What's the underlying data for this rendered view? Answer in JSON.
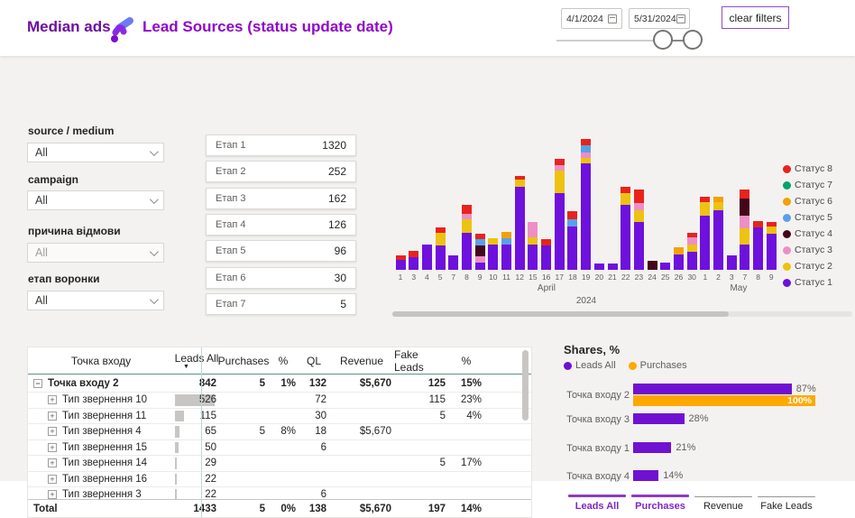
{
  "header": {
    "brand": "Median ads",
    "title": "Lead Sources (status update date)",
    "date_from": "4/1/2024",
    "date_to": "5/31/2024",
    "clear_filters_label": "clear filters"
  },
  "filters": [
    {
      "label": "source / medium",
      "value": "All",
      "muted": false
    },
    {
      "label": "campaign",
      "value": "All",
      "muted": false
    },
    {
      "label": "причина відмови",
      "value": "All",
      "muted": true
    },
    {
      "label": "етап воронки",
      "value": "All",
      "muted": false
    }
  ],
  "funnel_stages": [
    {
      "label": "Етап 1",
      "value": "1320"
    },
    {
      "label": "Етап 2",
      "value": "252"
    },
    {
      "label": "Етап 3",
      "value": "162"
    },
    {
      "label": "Етап 4",
      "value": "126"
    },
    {
      "label": "Етап 5",
      "value": "96"
    },
    {
      "label": "Етап 6",
      "value": "30"
    },
    {
      "label": "Етап 7",
      "value": "5"
    }
  ],
  "chart_data": {
    "type": "bar",
    "subtype": "stacked",
    "title": "",
    "xlabel": "date (April / May 2024)",
    "ylabel": "",
    "y_axis_visible": false,
    "ylim": [
      0,
      152
    ],
    "x_categories": [
      "1",
      "3",
      "4",
      "5",
      "7",
      "8",
      "9",
      "10",
      "11",
      "12",
      "15",
      "16",
      "17",
      "18",
      "19",
      "20",
      "21",
      "22",
      "23",
      "24",
      "25",
      "26",
      "30",
      "1",
      "2",
      "3",
      "7",
      "8",
      "9"
    ],
    "month_groups": [
      {
        "label": "April",
        "from": 0,
        "span": 23
      },
      {
        "label": "May",
        "from": 23,
        "span": 6
      }
    ],
    "year_label": "2024",
    "legend_position": "right",
    "legend_order": [
      "Статус 8",
      "Статус 7",
      "Статус 6",
      "Статус 5",
      "Статус 4",
      "Статус 3",
      "Статус 2",
      "Статус 1"
    ],
    "series": [
      {
        "name": "Статус 1",
        "color": "#6e11dc",
        "values": [
          11,
          14,
          28,
          27,
          16,
          41,
          8,
          28,
          28,
          92,
          28,
          27,
          85,
          48,
          118,
          7,
          7,
          72,
          53,
          0,
          8,
          17,
          20,
          60,
          66,
          16,
          28,
          47,
          40
        ]
      },
      {
        "name": "Статус 2",
        "color": "#edc211",
        "values": [
          0,
          0,
          0,
          14,
          0,
          15,
          0,
          7,
          0,
          8,
          8,
          0,
          25,
          0,
          6,
          0,
          0,
          13,
          13,
          0,
          0,
          0,
          8,
          15,
          9,
          0,
          18,
          0,
          8
        ]
      },
      {
        "name": "Статус 3",
        "color": "#ee8ec6",
        "values": [
          0,
          0,
          0,
          0,
          0,
          6,
          7,
          0,
          0,
          0,
          17,
          0,
          6,
          0,
          6,
          0,
          0,
          0,
          8,
          0,
          0,
          0,
          8,
          0,
          0,
          0,
          14,
          0,
          0
        ]
      },
      {
        "name": "Статус 4",
        "color": "#45061c",
        "values": [
          0,
          0,
          0,
          0,
          0,
          0,
          12,
          0,
          0,
          0,
          0,
          0,
          0,
          0,
          0,
          0,
          0,
          0,
          0,
          10,
          0,
          0,
          0,
          0,
          0,
          0,
          19,
          0,
          0
        ]
      },
      {
        "name": "Статус 5",
        "color": "#5aa0e8",
        "values": [
          0,
          0,
          0,
          0,
          0,
          0,
          7,
          0,
          7,
          0,
          0,
          0,
          0,
          8,
          8,
          0,
          0,
          0,
          0,
          0,
          0,
          0,
          0,
          0,
          0,
          0,
          0,
          0,
          0
        ]
      },
      {
        "name": "Статус 6",
        "color": "#f2a104",
        "values": [
          0,
          0,
          0,
          0,
          0,
          0,
          0,
          0,
          7,
          0,
          0,
          0,
          0,
          0,
          0,
          0,
          0,
          0,
          0,
          0,
          0,
          8,
          0,
          0,
          6,
          0,
          0,
          0,
          0
        ]
      },
      {
        "name": "Статус 7",
        "color": "#00a36c",
        "values": [
          0,
          0,
          0,
          0,
          0,
          0,
          0,
          0,
          0,
          0,
          0,
          0,
          0,
          0,
          0,
          0,
          0,
          0,
          0,
          0,
          0,
          0,
          0,
          0,
          0,
          0,
          0,
          0,
          0
        ]
      },
      {
        "name": "Статус 8",
        "color": "#e8231e",
        "values": [
          5,
          7,
          0,
          6,
          0,
          10,
          6,
          0,
          0,
          4,
          0,
          7,
          7,
          9,
          7,
          0,
          0,
          7,
          15,
          0,
          0,
          0,
          5,
          6,
          0,
          0,
          10,
          7,
          5
        ]
      }
    ]
  },
  "table": {
    "columns": [
      "Точка входу",
      "Leads All",
      "Purchases",
      "%",
      "QL",
      "Revenue",
      "Fake Leads",
      "%"
    ],
    "sorted_by": "Leads All",
    "rows": [
      {
        "level": 0,
        "expand": "minus",
        "bold": true,
        "name": "Точка входу 2",
        "leads": "842",
        "purchases": "5",
        "pct": "1%",
        "ql": "132",
        "revenue": "$5,670",
        "fake": "125",
        "fpct": "15%",
        "bar": 0
      },
      {
        "level": 1,
        "expand": "plus",
        "name": "Тип звернення 10",
        "leads": "526",
        "ql": "72",
        "fake": "115",
        "fpct": "23%",
        "bar": 1
      },
      {
        "level": 1,
        "expand": "plus",
        "name": "Тип звернення 11",
        "leads": "115",
        "ql": "30",
        "fake": "5",
        "fpct": "4%",
        "bar": 0.22
      },
      {
        "level": 1,
        "expand": "plus",
        "name": "Тип звернення 4",
        "leads": "65",
        "purchases": "5",
        "pct": "8%",
        "ql": "18",
        "revenue": "$5,670",
        "bar": 0.12
      },
      {
        "level": 1,
        "expand": "plus",
        "name": "Тип звернення 15",
        "leads": "50",
        "ql": "6",
        "bar": 0.1
      },
      {
        "level": 1,
        "expand": "plus",
        "name": "Тип звернення 14",
        "leads": "29",
        "fake": "5",
        "fpct": "17%",
        "bar": 0.055
      },
      {
        "level": 1,
        "expand": "plus",
        "name": "Тип звернення 16",
        "leads": "22",
        "bar": 0.042
      },
      {
        "level": 1,
        "expand": "plus",
        "name": "Тип звернення 3",
        "leads": "22",
        "ql": "6",
        "bar": 0.042
      }
    ],
    "total": {
      "name": "Total",
      "leads": "1433",
      "purchases": "5",
      "pct": "0%",
      "ql": "138",
      "revenue": "$5,670",
      "fake": "197",
      "fpct": "14%"
    }
  },
  "shares": {
    "title": "Shares, %",
    "legend": [
      {
        "label": "Leads All",
        "color": "#7011d2"
      },
      {
        "label": "Purchases",
        "color": "#ffa800"
      }
    ],
    "rows": [
      {
        "category": "Точка входу 2",
        "bars": [
          {
            "series": "Leads All",
            "pct": 87,
            "label": "87%",
            "label_inside": false
          },
          {
            "series": "Purchases",
            "pct": 100,
            "label": "100%",
            "label_inside": true
          }
        ]
      },
      {
        "category": "Точка входу 3",
        "bars": [
          {
            "series": "Leads All",
            "pct": 28,
            "label": "28%",
            "label_inside": false
          }
        ]
      },
      {
        "category": "Точка входу 1",
        "bars": [
          {
            "series": "Leads All",
            "pct": 21,
            "label": "21%",
            "label_inside": false
          }
        ]
      },
      {
        "category": "Точка входу 4",
        "bars": [
          {
            "series": "Leads All",
            "pct": 14,
            "label": "14%",
            "label_inside": false
          }
        ]
      }
    ]
  },
  "tabs": [
    {
      "label": "Leads All",
      "active": true
    },
    {
      "label": "Purchases",
      "active": true
    },
    {
      "label": "Revenue",
      "active": false
    },
    {
      "label": "Fake Leads",
      "active": false
    }
  ]
}
